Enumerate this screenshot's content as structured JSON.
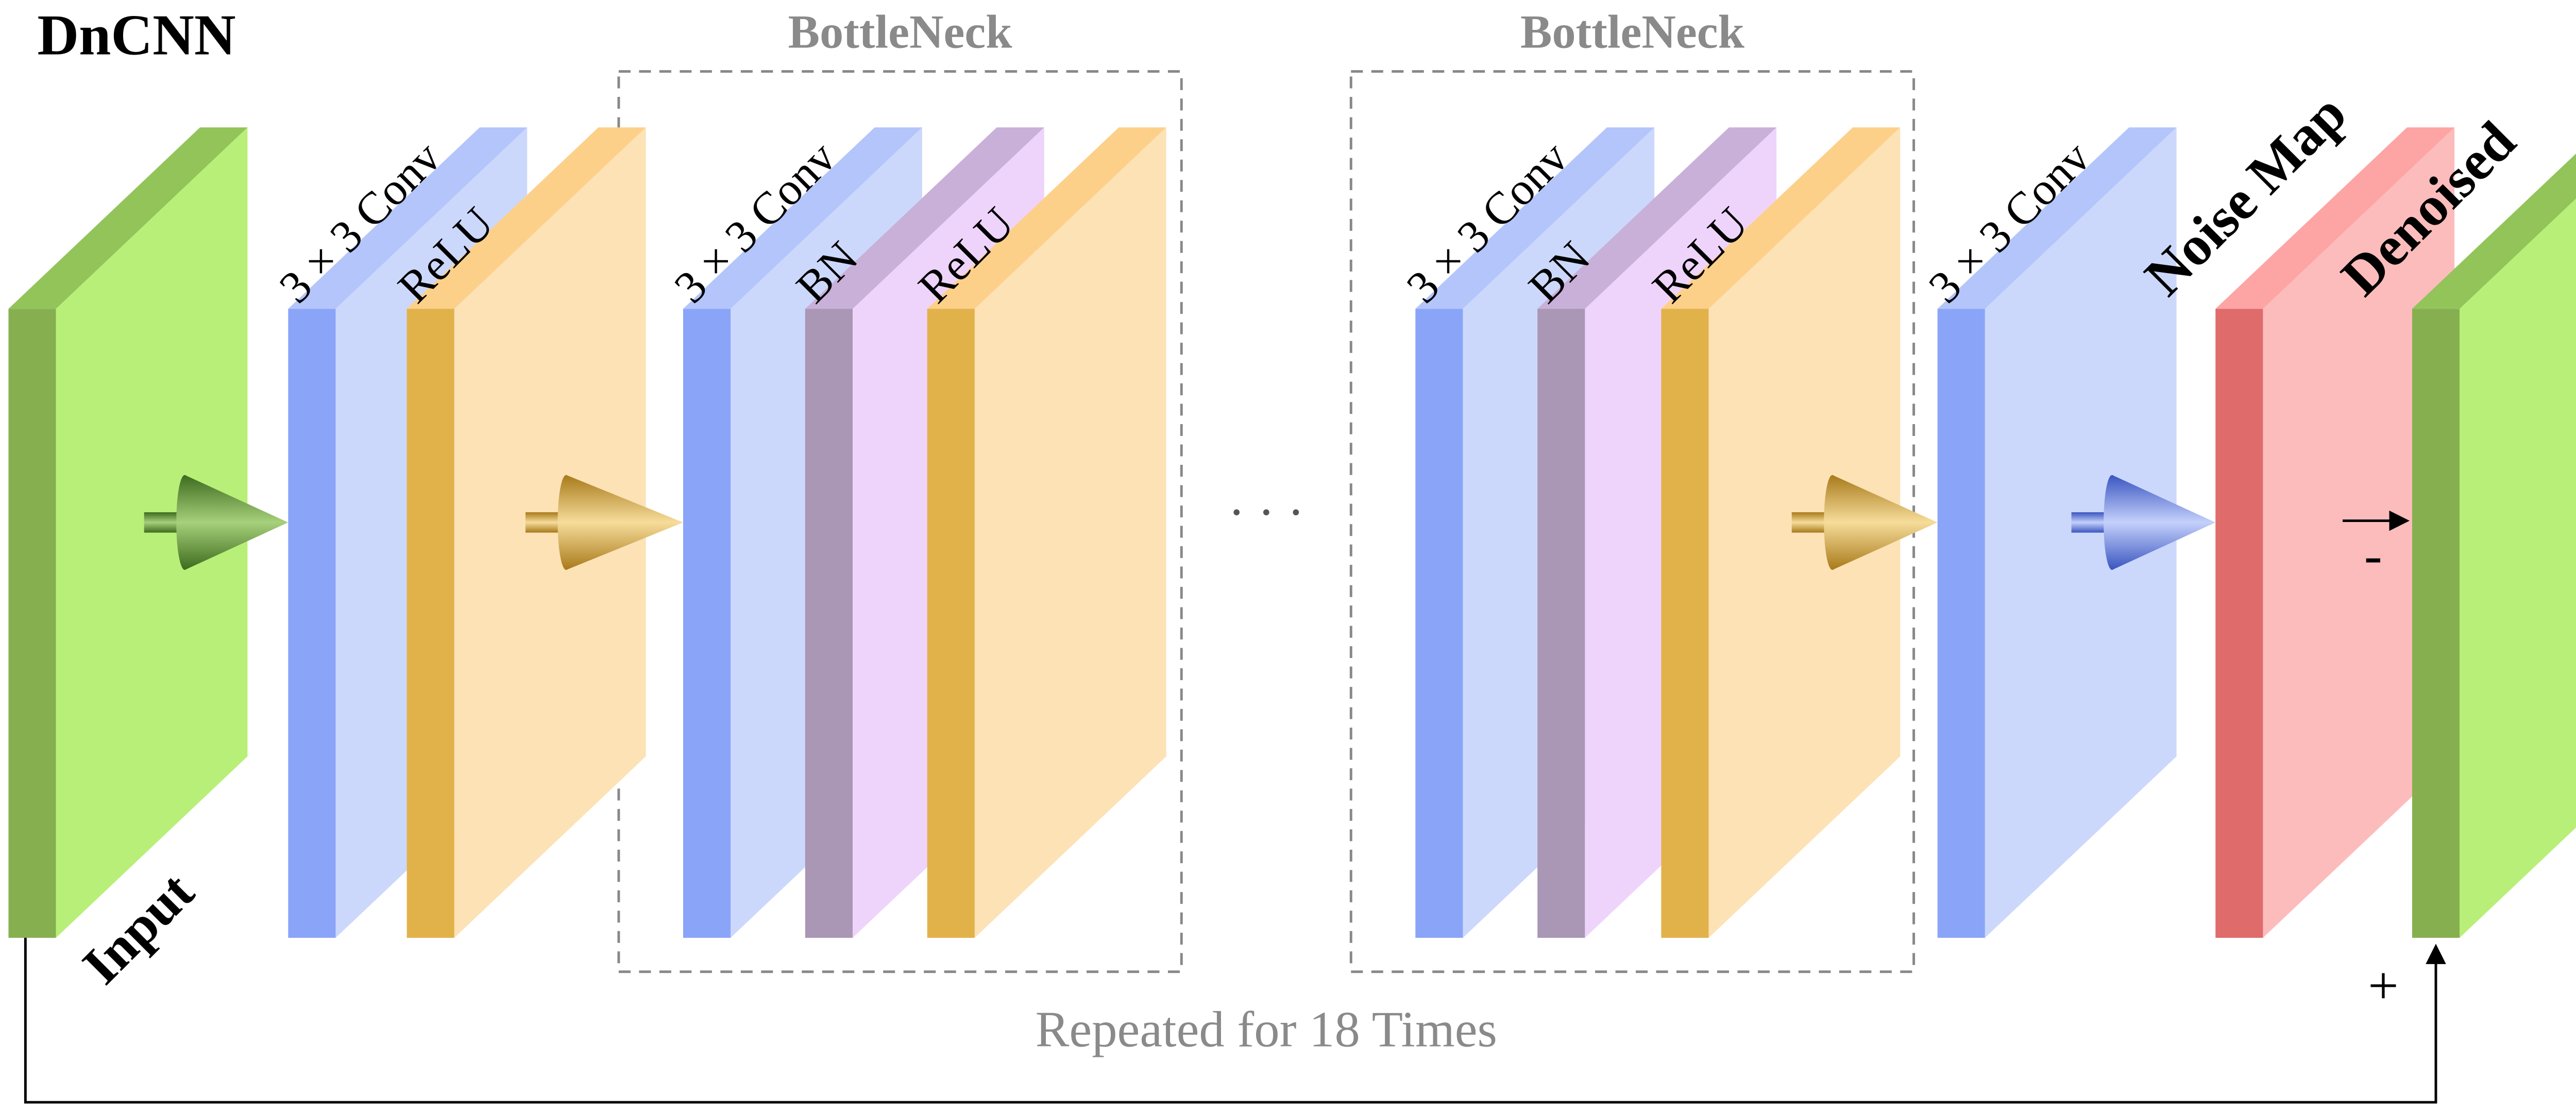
{
  "title": "DnCNN",
  "layers": [
    {
      "label": "Input"
    },
    {
      "label": "3 × 3 Conv"
    },
    {
      "label": "ReLU"
    },
    {
      "label": "3 × 3 Conv"
    },
    {
      "label": "BN"
    },
    {
      "label": "ReLU"
    },
    {
      "label": "3 × 3 Conv"
    },
    {
      "label": "BN"
    },
    {
      "label": "ReLU"
    },
    {
      "label": "3 × 3 Conv"
    },
    {
      "label": "Noise Map"
    },
    {
      "label": "Denoised"
    }
  ],
  "groups": [
    {
      "label": "BottleNeck"
    },
    {
      "label": "BottleNeck"
    }
  ],
  "ellipsis": "· · ·",
  "repeat_note": "Repeated for 18 Times",
  "signs": {
    "plus": "+",
    "minus": "-"
  }
}
